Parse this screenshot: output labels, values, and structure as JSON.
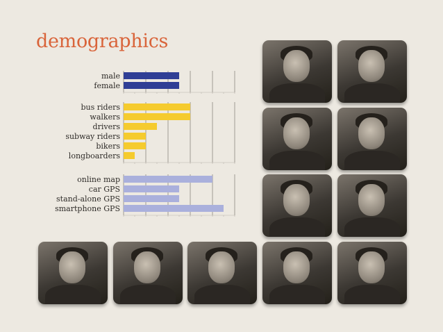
{
  "title": "demographics",
  "colors": {
    "title": "#d9643a",
    "gender": "#2f3e95",
    "transport": "#f5cb2e",
    "navigation": "#aab0dc",
    "grid": "#8a8680"
  },
  "chart_data": [
    {
      "type": "bar",
      "orientation": "horizontal",
      "categories": [
        "male",
        "female"
      ],
      "values": [
        5,
        5
      ],
      "xlim": [
        0,
        10
      ],
      "grid": true
    },
    {
      "type": "bar",
      "orientation": "horizontal",
      "categories": [
        "bus riders",
        "walkers",
        "drivers",
        "subway riders",
        "bikers",
        "longboarders"
      ],
      "values": [
        6,
        6,
        3,
        2,
        2,
        1
      ],
      "xlim": [
        0,
        10
      ],
      "grid": true
    },
    {
      "type": "bar",
      "orientation": "horizontal",
      "categories": [
        "online map",
        "car GPS",
        "stand-alone GPS",
        "smartphone GPS"
      ],
      "values": [
        8,
        5,
        5,
        9
      ],
      "xlim": [
        0,
        10
      ],
      "grid": true
    }
  ],
  "photos": [
    {
      "name": "photo-person-1"
    },
    {
      "name": "photo-person-2"
    },
    {
      "name": "photo-person-3"
    },
    {
      "name": "photo-person-4"
    },
    {
      "name": "photo-person-5"
    },
    {
      "name": "photo-person-6"
    },
    {
      "name": "photo-person-7"
    },
    {
      "name": "photo-person-8"
    },
    {
      "name": "photo-person-9"
    },
    {
      "name": "photo-person-10"
    },
    {
      "name": "photo-person-11"
    }
  ]
}
